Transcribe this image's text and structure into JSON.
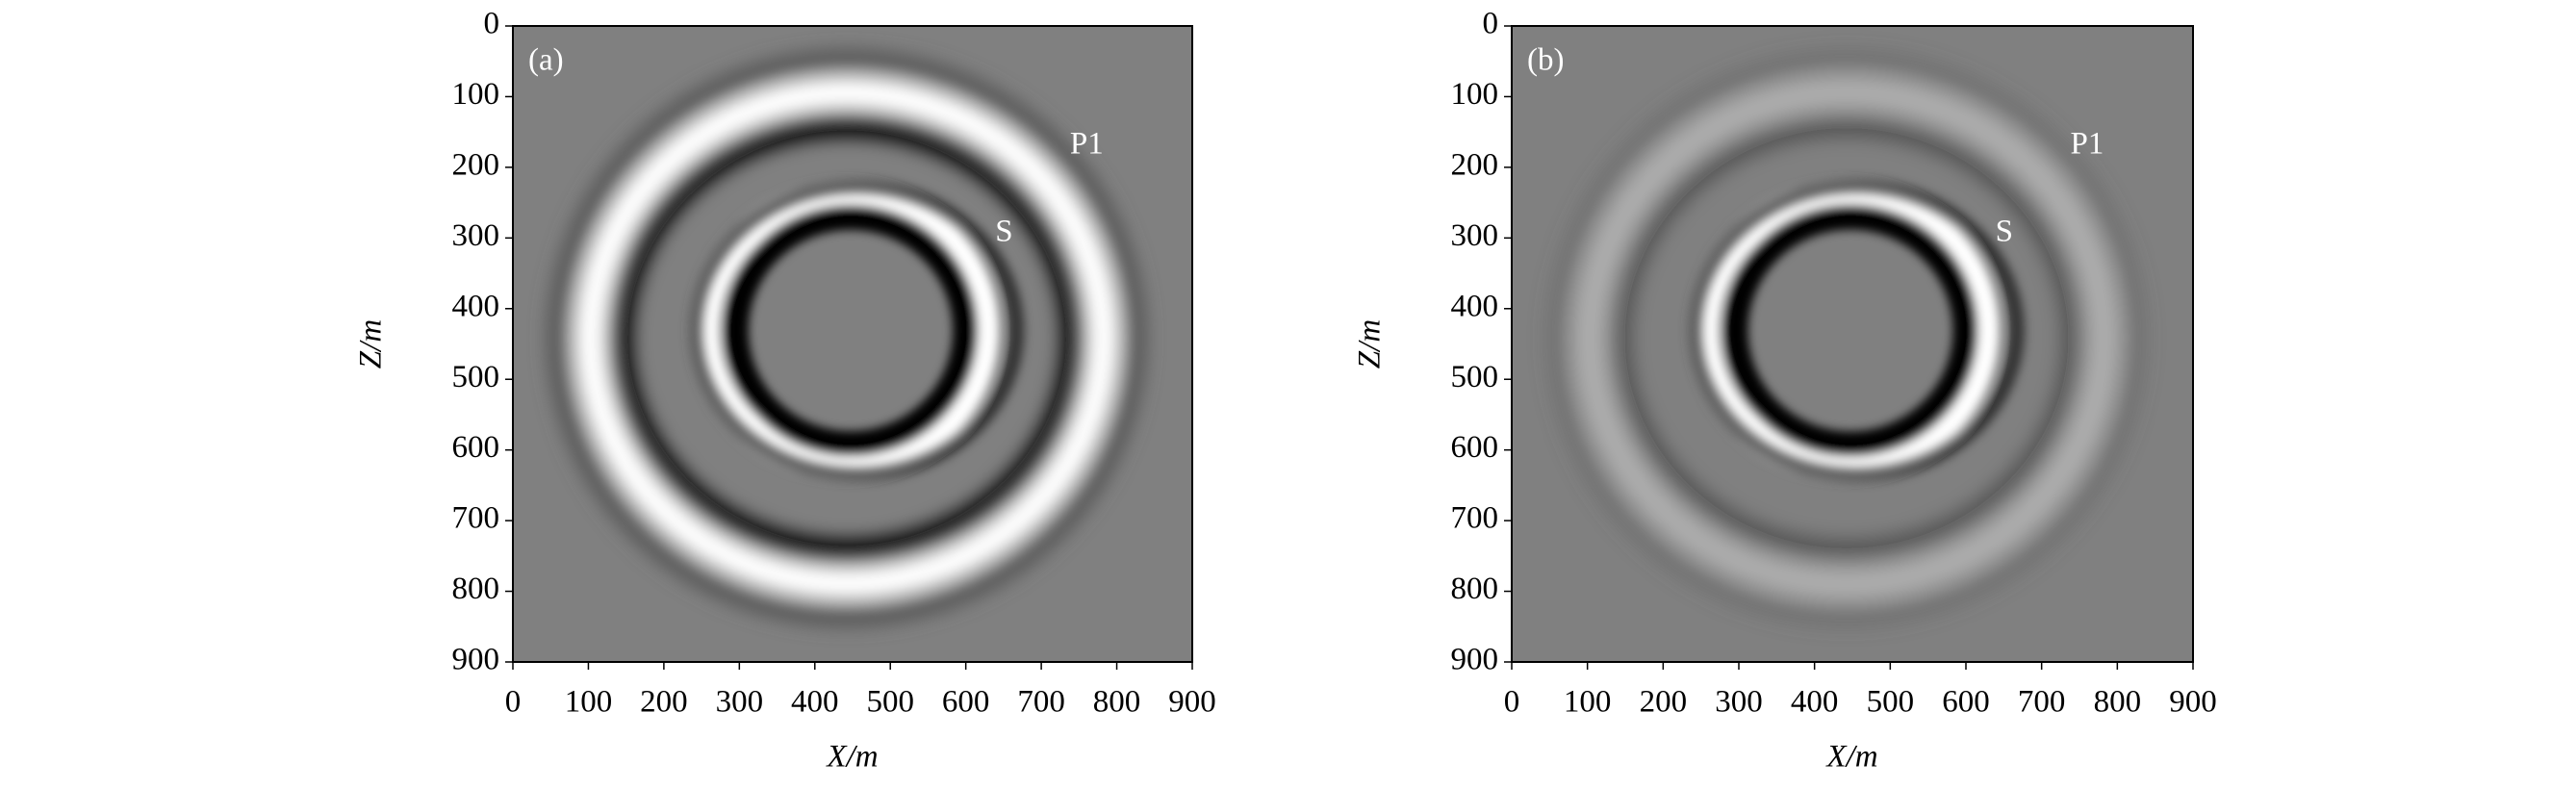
{
  "chart_data": [
    {
      "type": "image",
      "panel_label": "(a)",
      "annotations": [
        "P1",
        "S"
      ],
      "xlabel": "X/m",
      "ylabel": "Z/m",
      "xlim": [
        0,
        900
      ],
      "ylim": [
        900,
        0
      ],
      "xticks": [
        0,
        100,
        200,
        300,
        400,
        500,
        600,
        700,
        800,
        900
      ],
      "yticks": [
        0,
        100,
        200,
        300,
        400,
        500,
        600,
        700,
        800,
        900
      ]
    },
    {
      "type": "image",
      "panel_label": "(b)",
      "annotations": [
        "P1",
        "S"
      ],
      "xlabel": "X/m",
      "ylabel": "Z/m",
      "xlim": [
        0,
        900
      ],
      "ylim": [
        900,
        0
      ],
      "xticks": [
        0,
        100,
        200,
        300,
        400,
        500,
        600,
        700,
        800,
        900
      ],
      "yticks": [
        0,
        100,
        200,
        300,
        400,
        500,
        600,
        700,
        800,
        900
      ]
    }
  ]
}
